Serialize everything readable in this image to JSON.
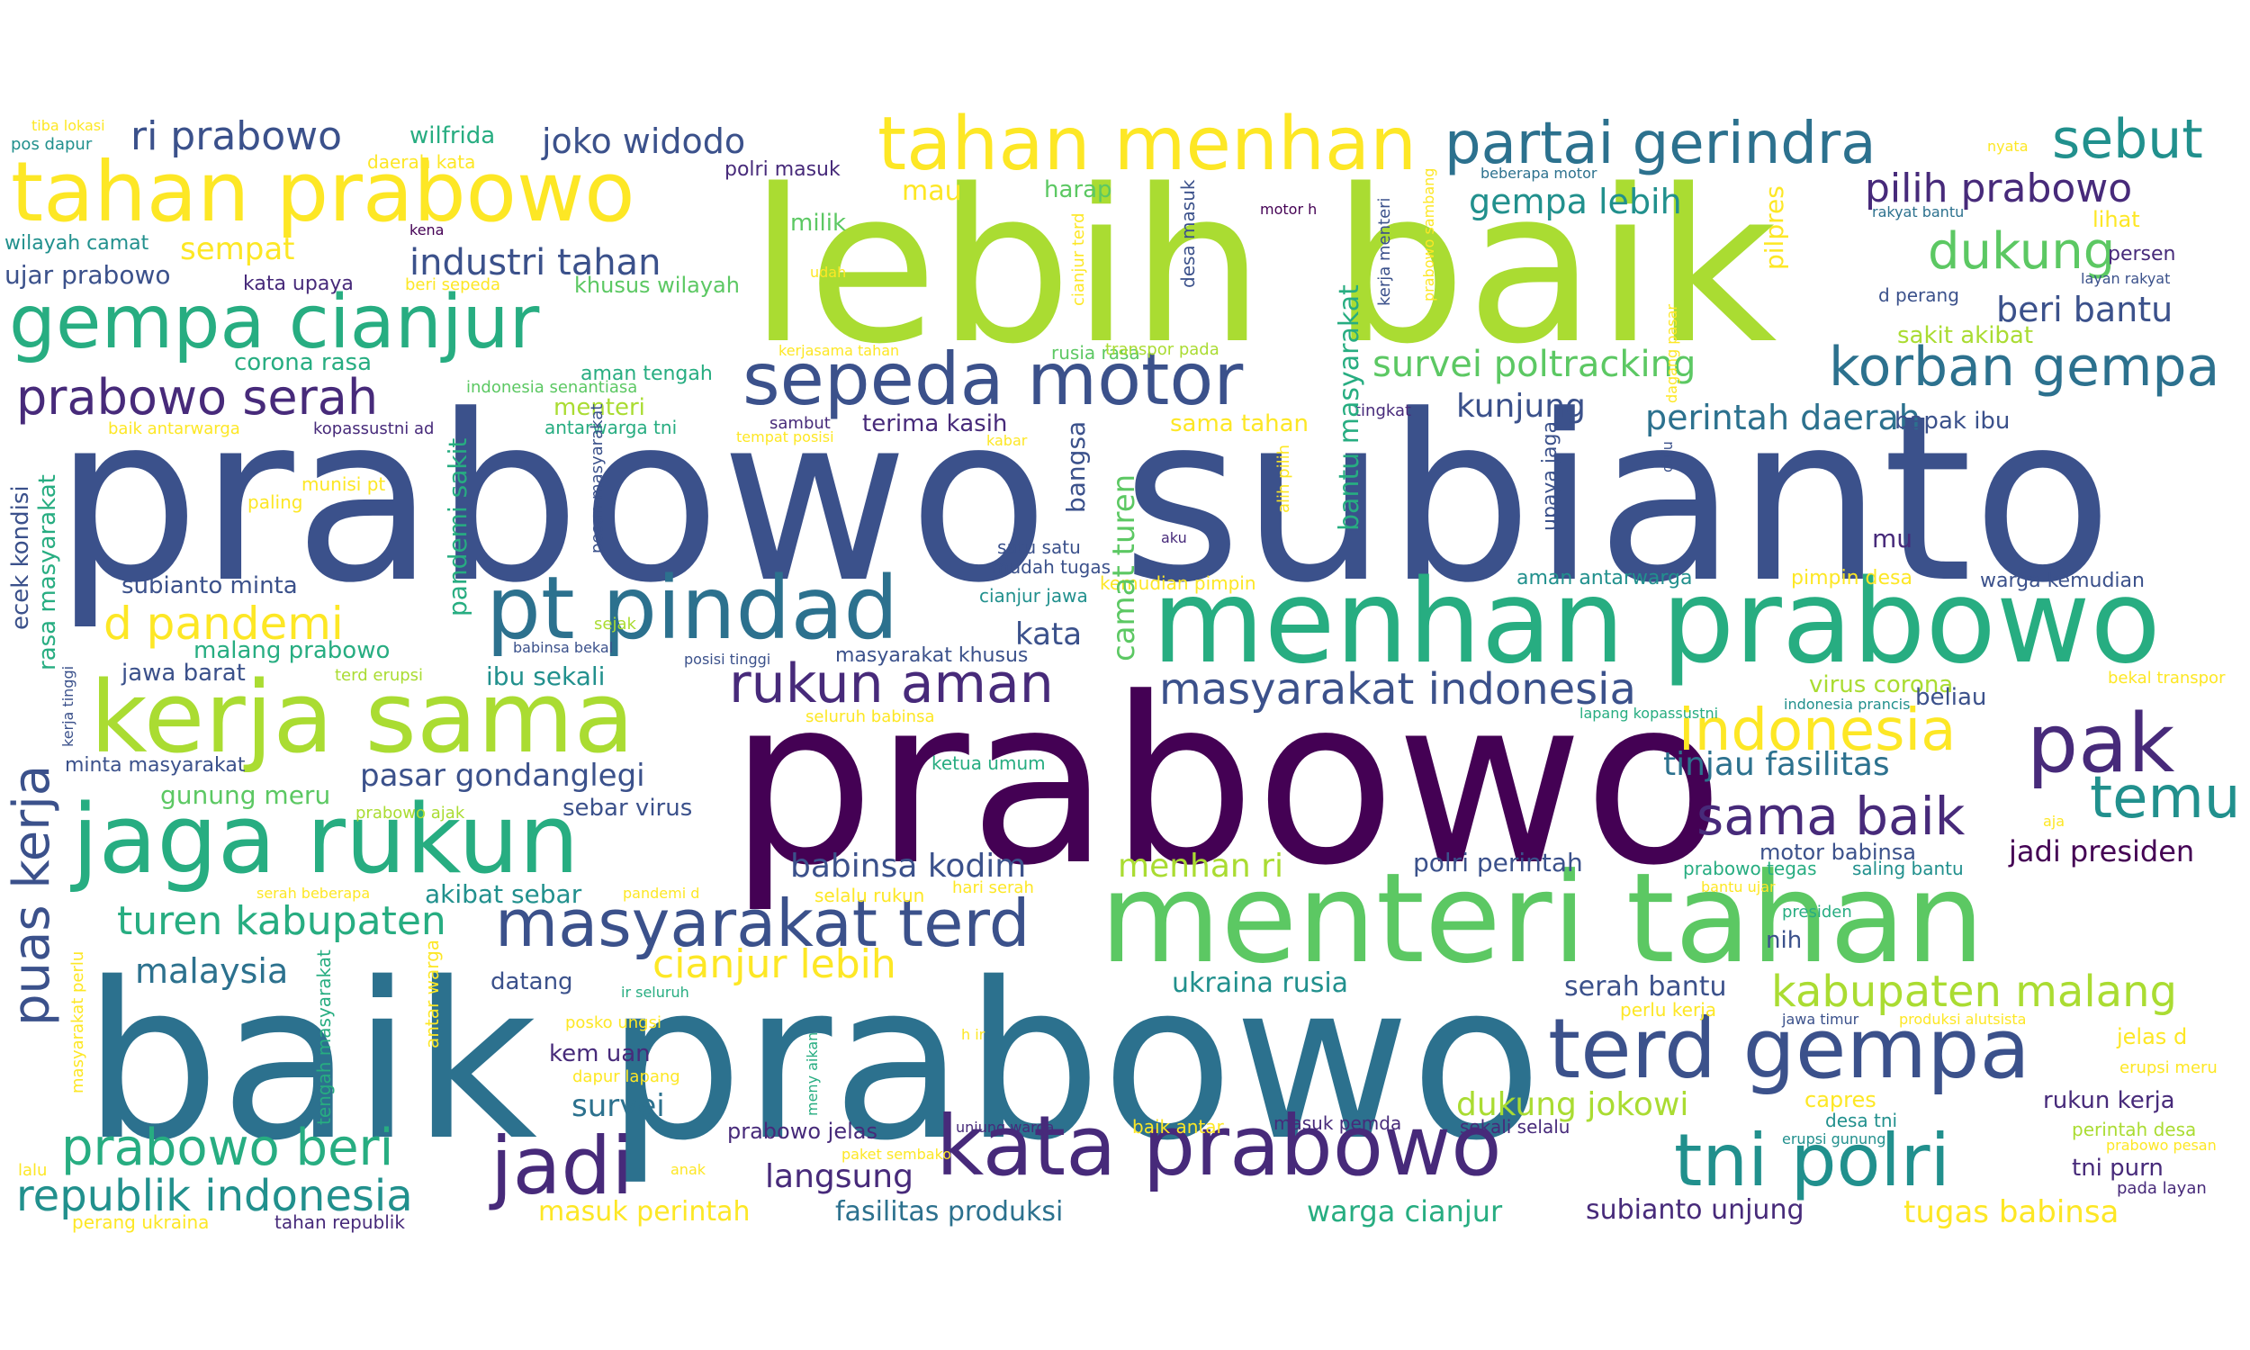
{
  "colors": {
    "c1": "#440154",
    "c2": "#472a7a",
    "c3": "#3b518b",
    "c4": "#2c718e",
    "c5": "#21908d",
    "c6": "#27ad81",
    "c7": "#5cc863",
    "c8": "#aadc32",
    "c9": "#fde725"
  },
  "words": [
    "prabowo subianto",
    "prabowo",
    "baik prabowo",
    "lebih baik",
    "menhan prabowo",
    "menteri tahan",
    "kerja sama",
    "jaga rukun",
    "kata prabowo",
    "tahan prabowo",
    "tahan menhan",
    "sepeda motor",
    "pt pindad",
    "gempa cianjur",
    "partai gerindra",
    "terd gempa",
    "tni polri",
    "masyarakat terd",
    "jadi",
    "pak",
    "korban gempa",
    "rukun aman",
    "prabowo serah",
    "ri prabowo",
    "sebut",
    "pilih prabowo",
    "dukung",
    "industri tahan",
    "survei poltracking",
    "masyarakat indonesia",
    "indonesia",
    "temu",
    "sama baik",
    "republik indonesia",
    "prabowo beri",
    "turen kabupaten",
    "d pandemi",
    "kabupaten malang",
    "cianjur lebih",
    "babinsa kodim",
    "menhan ri",
    "joko widodo",
    "gempa lebih",
    "beri bantu",
    "perintah daerah",
    "tinjau fasilitas",
    "jadi presiden",
    "kunjung",
    "langsung",
    "fasilitas produksi",
    "masuk perintah",
    "dukung jokowi",
    "warga cianjur",
    "subianto unjung",
    "tugas babinsa",
    "serah bantu",
    "ukraina rusia",
    "malaysia",
    "survei",
    "kata",
    "pasar gondanglegi",
    "corona rasa",
    "sempat",
    "mau",
    "milik",
    "harap",
    "polri masuk",
    "wilfrida",
    "tahan republik",
    "perang ukraina",
    "ujar prabowo",
    "wilayah camat",
    "pos dapur",
    "tiba lokasi",
    "kena",
    "daerah kata",
    "kata upaya",
    "beri sepeda",
    "khusus wilayah",
    "udah",
    "kerjasama tahan",
    "rusia rasa",
    "transpor pada",
    "indonesia senantiasa",
    "aman tengah",
    "menteri",
    "sambut",
    "tempat posisi",
    "terima kasih",
    "kabar",
    "sama tahan",
    "tingkat",
    "bapak ibu",
    "sakit akibat",
    "d perang",
    "layan rakyat",
    "persen",
    "lihat",
    "rakyat bantu",
    "nyata",
    "beberapa motor",
    "motor h",
    "baik antarwarga",
    "kopassustni ad",
    "antarwarga tni",
    "munisi pt",
    "paling",
    "subianto minta",
    "jawa barat",
    "ibu sekali",
    "minta masyarakat",
    "gunung meru",
    "prabowo ajak",
    "sebar virus",
    "serah beberapa",
    "pandemi d",
    "akibat sebar",
    "malang prabowo",
    "sejak",
    "terd erupsi",
    "babinsa bekal",
    "posisi tinggi",
    "masyarakat khusus",
    "seluruh babinsa",
    "ketua umum",
    "satu satu",
    "mudah tugas",
    "cianjur jawa",
    "kemudian pimpin",
    "aku",
    "aman antarwarga",
    "pimpin desa",
    "warga kemudian",
    "mu",
    "virus corona",
    "beliau",
    "bekal transpor",
    "indonesia prancis",
    "lapang kopassustni",
    "aja",
    "saling bantu",
    "motor babinsa",
    "polri perintah",
    "prabowo tegas",
    "bantu ujar",
    "presiden",
    "nih",
    "hari serah",
    "selalu rukun",
    "datang",
    "ir seluruh",
    "posko ungsi",
    "kem uan",
    "dapur lapang",
    "h ir",
    "unjung warga",
    "paket sembako",
    "anak",
    "prabowo jelas",
    "baik antar",
    "masuk pemda",
    "sekali selalu",
    "desa tni",
    "capres",
    "erupsi gunung",
    "jawa timur",
    "produksi alutsista",
    "perlu kerja",
    "jelas d",
    "erupsi meru",
    "rukun kerja",
    "perintah desa",
    "prabowo pesan",
    "tni purn",
    "pada layan",
    "lalu",
    "puas kerja",
    "ecek kondisi",
    "rasa masyarakat",
    "kerja tinggi",
    "pandemi sakit",
    "camat turen",
    "bangsa",
    "bantu masyarakat",
    "pilpres",
    "alih pilih",
    "upaya jaga",
    "dulu",
    "pesan masyarakat",
    "desa masuk",
    "cianjur terd",
    "kerja menteri",
    "prabowo sambang",
    "masyarakat perlu",
    "tengah masyarakat",
    "antar warga",
    "meny aikan",
    "laku",
    "dagang pasar"
  ]
}
